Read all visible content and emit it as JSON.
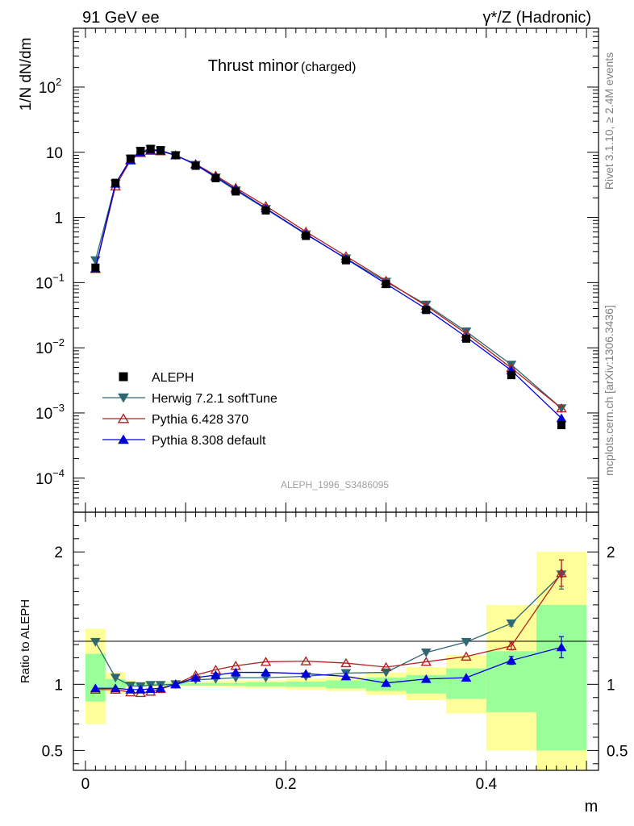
{
  "header": {
    "left": "91 GeV ee",
    "right": "γ*/Z (Hadronic)"
  },
  "side_labels": {
    "rivet": "Rivet 3.1.10, ≥ 2.4M events",
    "mcplots": "mcplots.cern.ch [arXiv:1306.3436]"
  },
  "chart_data": [
    {
      "type": "line",
      "panel": "main",
      "title": "Thrust minor",
      "title_suffix": "(charged)",
      "ylabel": "1/N dN/dm",
      "yscale": "log",
      "xlim": [
        -0.012,
        0.512
      ],
      "ylim": [
        3e-05,
        800
      ],
      "ytick_labels": [
        {
          "value": 0.0001,
          "mant": "10",
          "exp": "−4"
        },
        {
          "value": 0.001,
          "mant": "10",
          "exp": "−3"
        },
        {
          "value": 0.01,
          "mant": "10",
          "exp": "−2"
        },
        {
          "value": 0.1,
          "mant": "10",
          "exp": "−1"
        },
        {
          "value": 1,
          "mant": "1",
          "exp": ""
        },
        {
          "value": 10,
          "mant": "10",
          "exp": ""
        },
        {
          "value": 100,
          "mant": "10",
          "exp": "2"
        }
      ],
      "watermark": "ALEPH_1996_S3486095",
      "legend_position": "bottom-left",
      "x": [
        0.01,
        0.03,
        0.045,
        0.055,
        0.065,
        0.075,
        0.09,
        0.11,
        0.13,
        0.15,
        0.18,
        0.22,
        0.26,
        0.3,
        0.34,
        0.38,
        0.425,
        0.475
      ],
      "series": [
        {
          "name": "ALEPH",
          "color": "#000000",
          "marker": "square",
          "values": [
            0.17,
            3.4,
            8.0,
            10.5,
            11.3,
            10.8,
            9.0,
            6.2,
            4.0,
            2.5,
            1.28,
            0.52,
            0.22,
            0.095,
            0.038,
            0.0138,
            0.0038,
            0.00065
          ]
        },
        {
          "name": "Herwig 7.2.1 softTune",
          "color": "#2f6872",
          "marker": "triangle-down",
          "values": [
            0.22,
            3.3,
            8.0,
            10.4,
            11.2,
            10.7,
            9.0,
            6.4,
            4.1,
            2.6,
            1.35,
            0.55,
            0.235,
            0.103,
            0.046,
            0.0178,
            0.0055,
            0.00118
          ]
        },
        {
          "name": "Pythia 6.428 370",
          "color": "#b22222",
          "marker": "triangle-up-open",
          "values": [
            0.163,
            3.0,
            7.5,
            9.8,
            10.6,
            10.4,
            9.0,
            6.6,
            4.4,
            2.85,
            1.5,
            0.605,
            0.255,
            0.107,
            0.044,
            0.0165,
            0.0049,
            0.00118
          ]
        },
        {
          "name": "Pythia 8.308 default",
          "color": "#0000dd",
          "marker": "triangle-up",
          "values": [
            0.165,
            3.3,
            7.7,
            10.0,
            10.9,
            10.5,
            9.0,
            6.5,
            4.2,
            2.7,
            1.38,
            0.56,
            0.233,
            0.096,
            0.0395,
            0.0146,
            0.0045,
            0.00083
          ]
        }
      ]
    },
    {
      "type": "line",
      "panel": "ratio",
      "ylabel": "Ratio to ALEPH",
      "xlabel": "m",
      "xlim": [
        -0.012,
        0.512
      ],
      "ylim": [
        0.35,
        2.3
      ],
      "xticks": [
        0,
        0.2,
        0.4
      ],
      "xtick_labels": [
        "0",
        "0.2",
        "0.4"
      ],
      "yticks": [
        0.5,
        1,
        2
      ],
      "ytick_labels": [
        "0.5",
        "1",
        "2"
      ],
      "bands": {
        "edges": [
          0,
          0.02,
          0.04,
          0.05,
          0.06,
          0.07,
          0.08,
          0.1,
          0.12,
          0.14,
          0.16,
          0.2,
          0.24,
          0.28,
          0.32,
          0.36,
          0.4,
          0.45,
          0.5
        ],
        "stat_color": "#99ff99",
        "syst_color": "#ffff99",
        "stat_low": [
          0.87,
          0.97,
          0.985,
          0.99,
          0.99,
          0.99,
          0.99,
          0.99,
          0.99,
          0.99,
          0.985,
          0.98,
          0.97,
          0.95,
          0.93,
          0.89,
          0.79,
          0.5
        ],
        "stat_high": [
          1.23,
          1.04,
          1.015,
          1.01,
          1.01,
          1.01,
          1.01,
          1.01,
          1.01,
          1.01,
          1.015,
          1.02,
          1.03,
          1.05,
          1.07,
          1.12,
          1.25,
          1.6
        ],
        "syst_low": [
          0.7,
          0.93,
          0.975,
          0.98,
          0.98,
          0.98,
          0.985,
          0.985,
          0.98,
          0.975,
          0.97,
          0.96,
          0.95,
          0.92,
          0.88,
          0.78,
          0.5,
          0.35
        ],
        "syst_high": [
          1.42,
          1.09,
          1.03,
          1.02,
          1.02,
          1.02,
          1.02,
          1.02,
          1.025,
          1.03,
          1.03,
          1.045,
          1.06,
          1.09,
          1.13,
          1.22,
          1.6,
          2.0
        ]
      },
      "x": [
        0.01,
        0.03,
        0.045,
        0.055,
        0.065,
        0.075,
        0.09,
        0.11,
        0.13,
        0.15,
        0.18,
        0.22,
        0.26,
        0.3,
        0.34,
        0.38,
        0.425,
        0.475
      ],
      "series": [
        {
          "name": "Herwig 7.2.1 softTune",
          "color": "#2f6872",
          "marker": "triangle-down",
          "values": [
            1.32,
            1.05,
            0.99,
            0.985,
            0.995,
            0.995,
            1.0,
            1.035,
            1.04,
            1.05,
            1.05,
            1.06,
            1.085,
            1.09,
            1.24,
            1.32,
            1.46,
            1.83
          ],
          "errors": [
            0,
            0,
            0,
            0,
            0,
            0,
            0,
            0,
            0,
            0,
            0,
            0,
            0,
            0,
            0,
            0,
            0.02,
            0.11
          ]
        },
        {
          "name": "Pythia 6.428 370",
          "color": "#b22222",
          "marker": "triangle-up-open",
          "values": [
            0.96,
            0.96,
            0.94,
            0.935,
            0.945,
            0.965,
            1.0,
            1.07,
            1.11,
            1.14,
            1.17,
            1.175,
            1.16,
            1.13,
            1.17,
            1.21,
            1.29,
            1.84
          ],
          "errors": [
            0,
            0,
            0,
            0,
            0,
            0,
            0,
            0,
            0,
            0,
            0,
            0,
            0,
            0,
            0,
            0,
            0.03,
            0.1
          ]
        },
        {
          "name": "Pythia 8.308 default",
          "color": "#0000dd",
          "marker": "triangle-up",
          "values": [
            0.97,
            0.97,
            0.96,
            0.96,
            0.965,
            0.97,
            1.0,
            1.05,
            1.07,
            1.09,
            1.09,
            1.08,
            1.06,
            1.01,
            1.04,
            1.05,
            1.18,
            1.28
          ],
          "errors": [
            0,
            0,
            0,
            0,
            0,
            0,
            0,
            0,
            0,
            0,
            0,
            0,
            0,
            0,
            0,
            0,
            0.03,
            0.08
          ]
        }
      ]
    }
  ]
}
